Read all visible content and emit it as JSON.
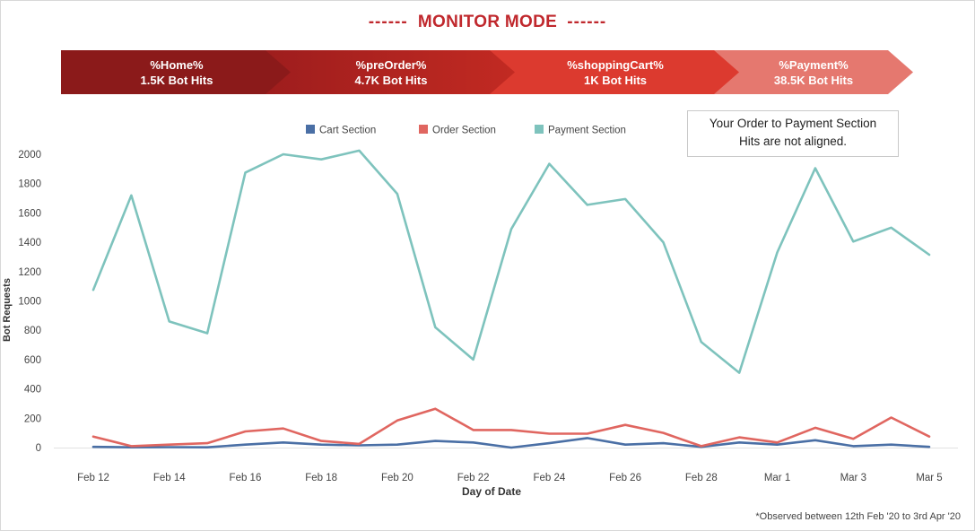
{
  "header": {
    "title": "MONITOR MODE",
    "dashes": "------"
  },
  "funnel": [
    {
      "label": "%Home%",
      "value": "1.5K Bot Hits"
    },
    {
      "label": "%preOrder%",
      "value": "4.7K Bot Hits"
    },
    {
      "label": "%shoppingCart%",
      "value": "1K Bot Hits"
    },
    {
      "label": "%Payment%",
      "value": "38.5K Bot Hits"
    }
  ],
  "annotation": {
    "line1": "Your Order to Payment Section",
    "line2": "Hits are not aligned."
  },
  "footnote": "*Observed between 12th Feb '20 to 3rd Apr '20",
  "chart_data": {
    "type": "line",
    "xlabel": "Day of Date",
    "ylabel": "Bot Requests",
    "ylim": [
      0,
      2000
    ],
    "yticks": [
      0,
      200,
      400,
      600,
      800,
      1000,
      1200,
      1400,
      1600,
      1800,
      2000
    ],
    "x": [
      "Feb 12",
      "Feb 13",
      "Feb 14",
      "Feb 15",
      "Feb 16",
      "Feb 17",
      "Feb 18",
      "Feb 19",
      "Feb 20",
      "Feb 21",
      "Feb 22",
      "Feb 23",
      "Feb 24",
      "Feb 25",
      "Feb 26",
      "Feb 27",
      "Feb 28",
      "Feb 29",
      "Mar 1",
      "Mar 2",
      "Mar 3",
      "Mar 4",
      "Mar 5"
    ],
    "xtick_labels": [
      "Feb 12",
      "Feb 14",
      "Feb 16",
      "Feb 18",
      "Feb 20",
      "Feb 22",
      "Feb 24",
      "Feb 26",
      "Feb 28",
      "Mar 1",
      "Mar 3",
      "Mar 5"
    ],
    "legend_position": "top",
    "grid": false,
    "series": [
      {
        "name": "Cart Section",
        "color": "#4a6fa5",
        "values": [
          5,
          2,
          3,
          2,
          20,
          35,
          20,
          15,
          20,
          45,
          35,
          0,
          30,
          65,
          20,
          30,
          5,
          35,
          20,
          50,
          10,
          20,
          5
        ]
      },
      {
        "name": "Order Section",
        "color": "#e06660",
        "values": [
          75,
          10,
          20,
          30,
          110,
          130,
          45,
          25,
          185,
          265,
          120,
          120,
          95,
          95,
          155,
          100,
          10,
          70,
          35,
          135,
          60,
          205,
          75
        ]
      },
      {
        "name": "Payment Section",
        "color": "#7ec3bd",
        "values": [
          1075,
          1720,
          860,
          780,
          1875,
          2000,
          1965,
          2025,
          1730,
          820,
          600,
          1490,
          1935,
          1655,
          1695,
          1400,
          720,
          510,
          1330,
          1905,
          1405,
          1500,
          1315
        ]
      }
    ]
  }
}
